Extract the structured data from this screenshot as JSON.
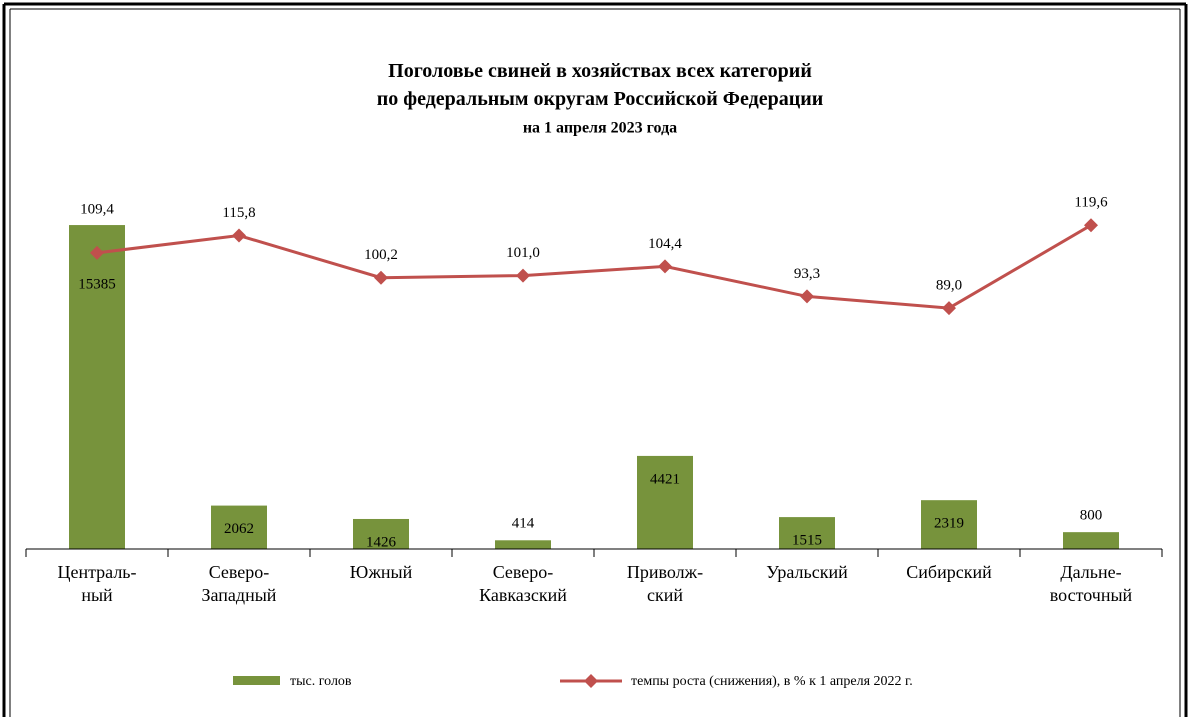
{
  "chart_data": {
    "type": "bar+line",
    "title": "Поголовье  свиней  в хозяйствах  всех категорий\nпо федеральным  округам  Российской  Федерации",
    "subtitle": "на 1 апреля 2023 года",
    "categories": [
      "Централь-\nный",
      "Северо-\nЗападный",
      "Южный",
      "Северо-\nКавказский",
      "Приволж-\nский",
      "Уральский",
      "Сибирский",
      "Дальне-\nвосточный"
    ],
    "series": [
      {
        "name": "тыс. голов",
        "color": "#77933c",
        "values": [
          15385,
          2062,
          1426,
          414,
          4421,
          1515,
          2319,
          800
        ]
      },
      {
        "name": "темпы роста (снижения), в % к 1 апреля 2022 г.",
        "color": "#c0504d",
        "axis": "y2",
        "values": [
          109.4,
          115.8,
          100.2,
          101.0,
          104.4,
          93.3,
          89.0,
          119.6
        ],
        "value_labels": [
          "109,4",
          "115,8",
          "100,2",
          "101,0",
          "104,4",
          "93,3",
          "89,0",
          "119,6"
        ]
      }
    ],
    "ylim": [
      0,
      18000
    ],
    "y2lim": [
      0,
      140
    ],
    "legend": "bottom"
  }
}
